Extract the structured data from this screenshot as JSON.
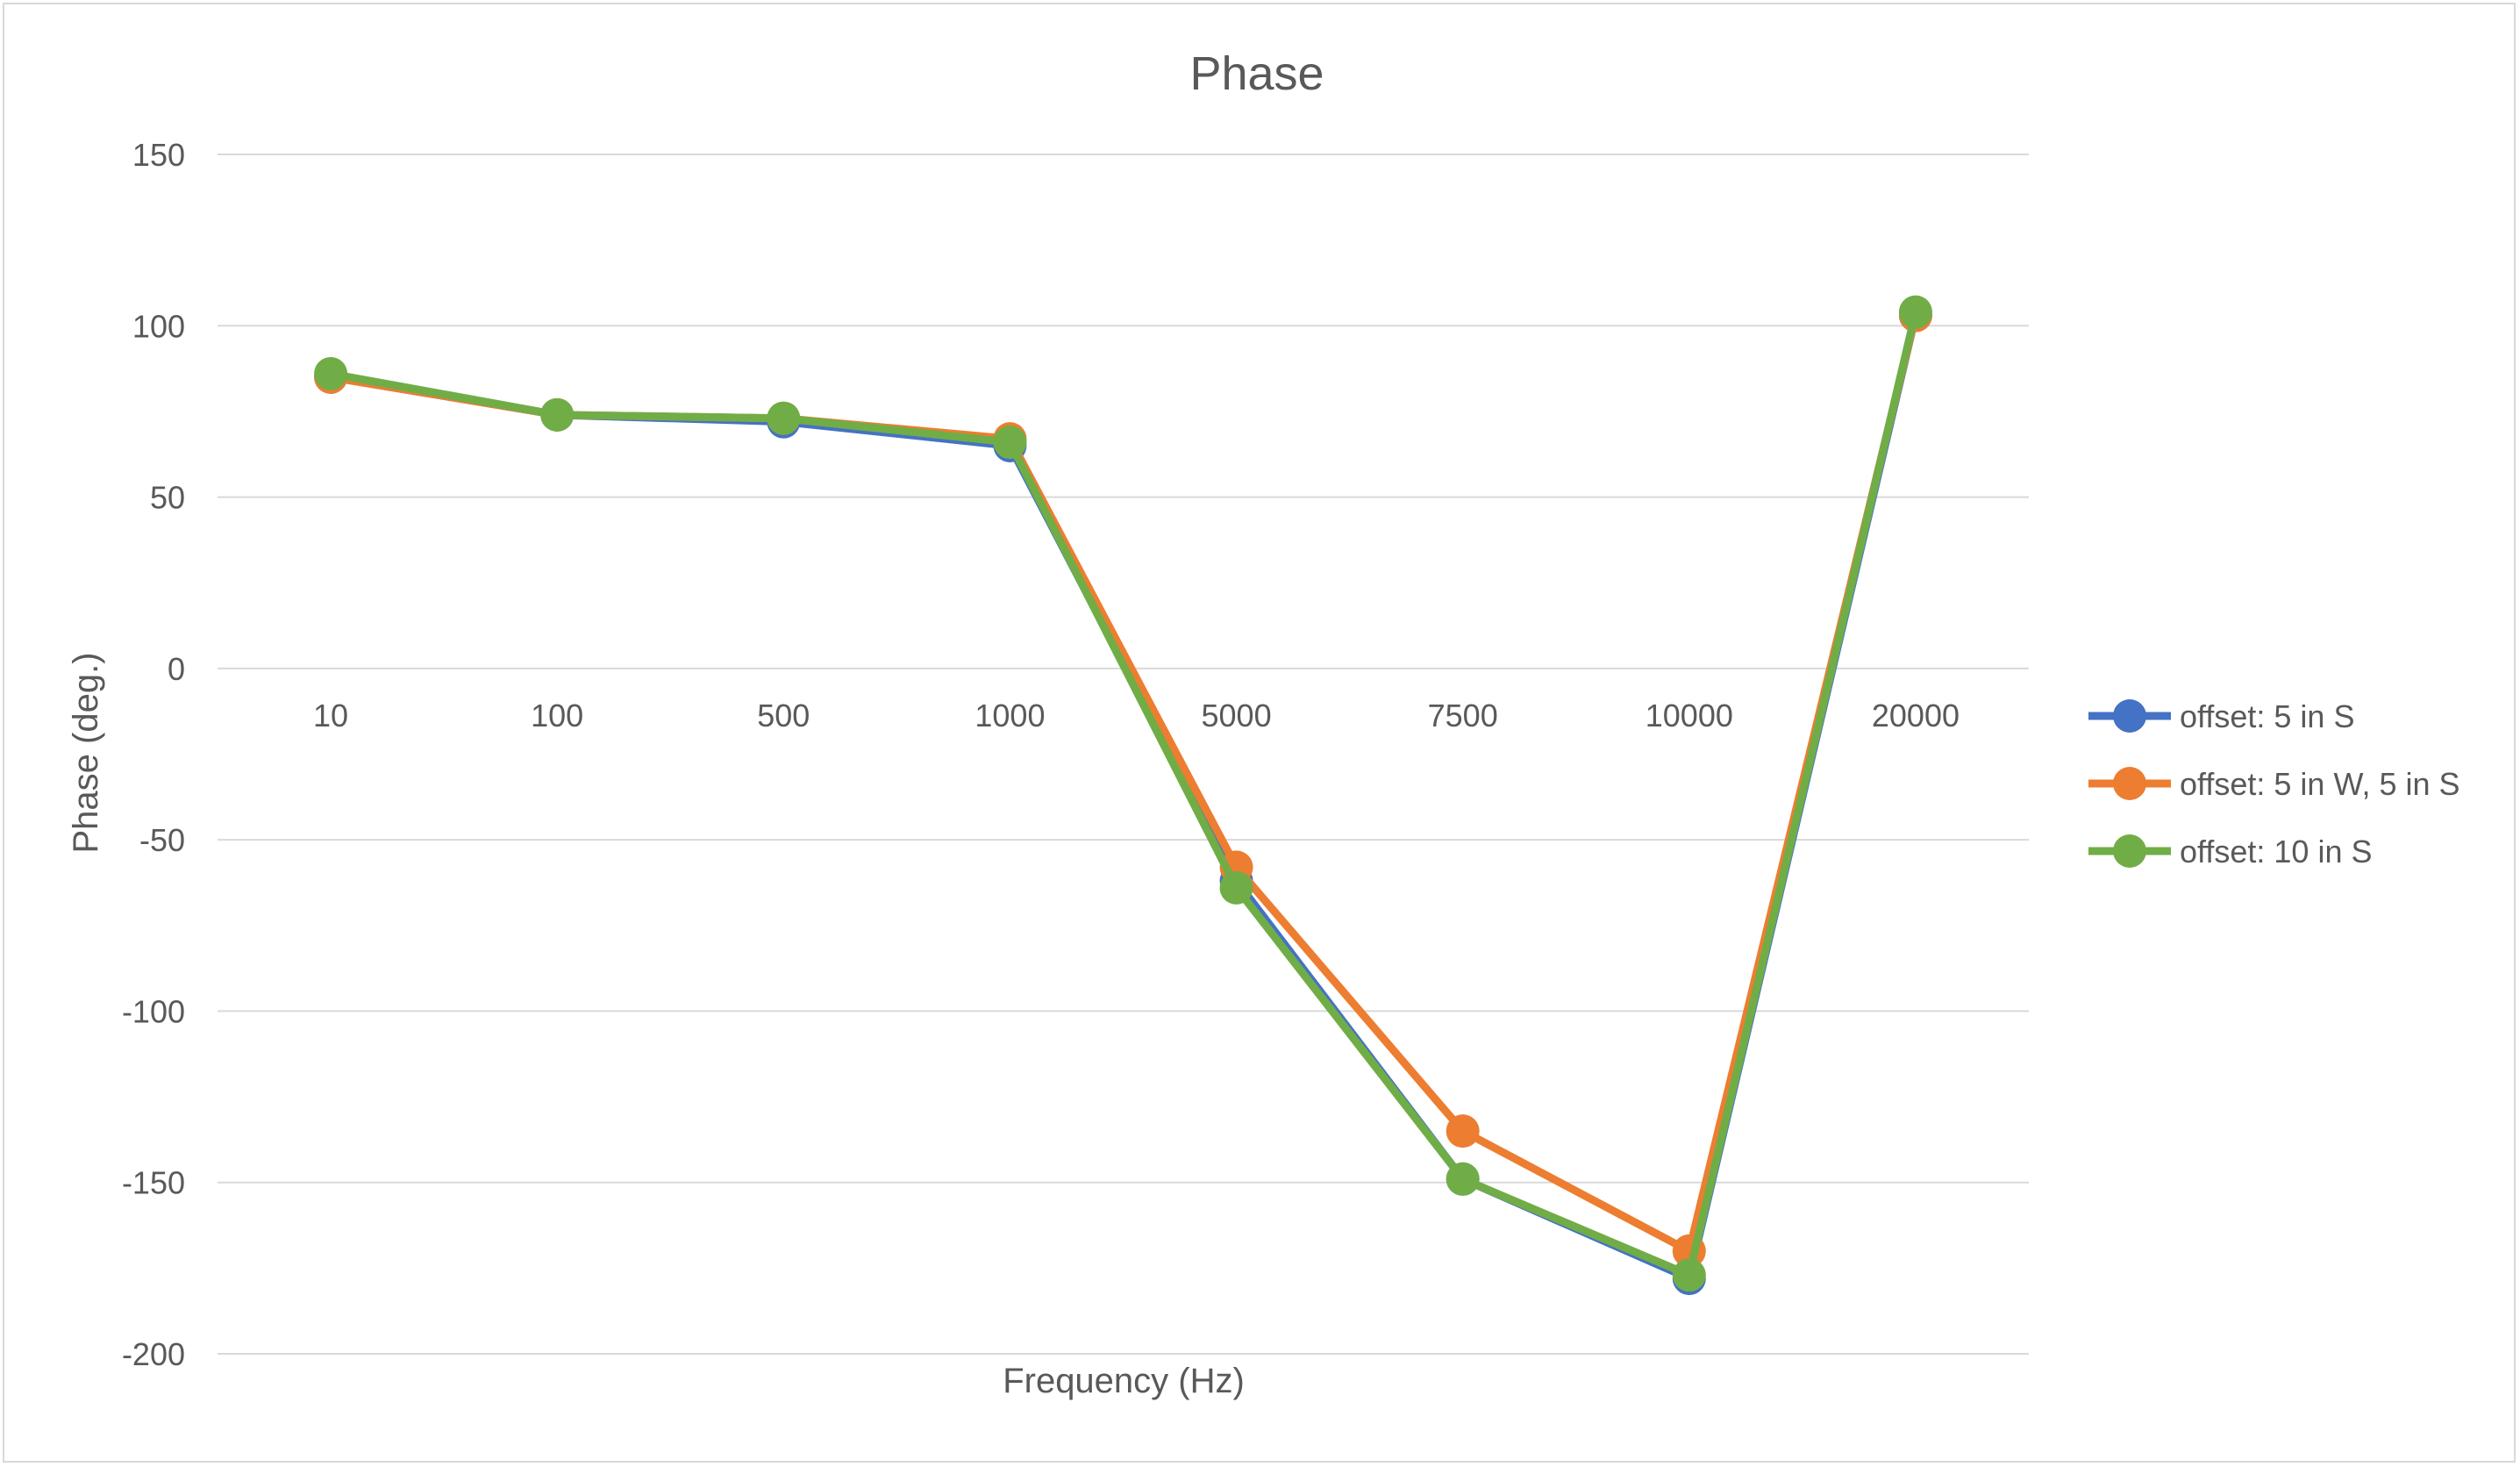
{
  "chart_data": {
    "type": "line",
    "title": "Phase",
    "xlabel": "Frequency (Hz)",
    "ylabel": "Phase (deg.)",
    "categories": [
      "10",
      "100",
      "500",
      "1000",
      "5000",
      "7500",
      "10000",
      "20000"
    ],
    "ylim": [
      -200,
      150
    ],
    "yticks": [
      150,
      100,
      50,
      0,
      -50,
      -100,
      -150,
      -200
    ],
    "grid": true,
    "legend_position": "right",
    "series": [
      {
        "name": "offset: 5 in S",
        "color": "#4472c4",
        "values": [
          85,
          74,
          72,
          65,
          -62,
          -149,
          -178,
          103
        ]
      },
      {
        "name": "offset: 5 in W, 5 in S",
        "color": "#ed7d31",
        "values": [
          85,
          74,
          73,
          67,
          -58,
          -135,
          -170,
          103
        ]
      },
      {
        "name": "offset: 10 in S",
        "color": "#70ad47",
        "values": [
          86,
          74,
          73,
          66,
          -64,
          -149,
          -177,
          104
        ]
      }
    ]
  }
}
